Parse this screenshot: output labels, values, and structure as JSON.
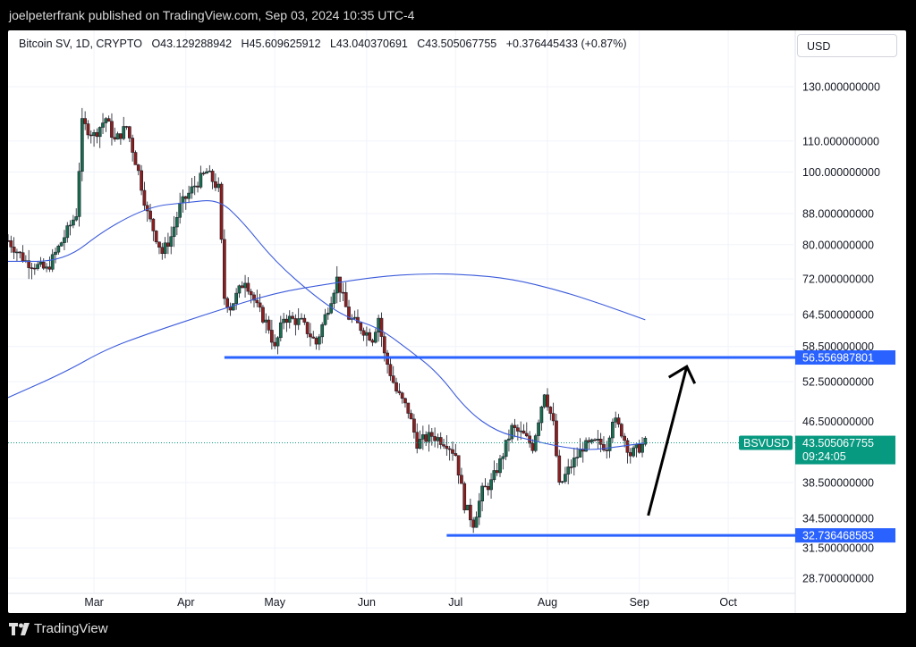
{
  "header": {
    "publisher_text": "joelpeterfrank published on TradingView.com, Sep 03, 2024 10:35 UTC-4"
  },
  "legend": {
    "symbol": "Bitcoin SV, 1D, CRYPTO",
    "open": "O43.129288942",
    "high": "H45.609625912",
    "low": "L43.040370691",
    "close": "C43.505067755",
    "change": "+0.376445433 (+0.87%)"
  },
  "currency_button": "USD",
  "footer": {
    "brand": "TradingView"
  },
  "colors": {
    "up": "#26a69a",
    "down": "#ef5350",
    "candle_body_up": "#1b6b4f",
    "candle_body_down": "#8b1f1f",
    "ma": "#3b5bdb",
    "hline": "#2962ff",
    "accent_green": "#089981"
  },
  "chart_data": {
    "type": "candlestick",
    "title": "Bitcoin SV, 1D, CRYPTO",
    "y_scale": "log",
    "ylim": [
      28,
      140
    ],
    "price_ticks": [
      "130.000000000",
      "110.000000000",
      "100.000000000",
      "88.000000000",
      "80.000000000",
      "72.000000000",
      "64.500000000",
      "58.500000000",
      "52.500000000",
      "46.500000000",
      "38.500000000",
      "34.500000000",
      "31.500000000",
      "28.700000000"
    ],
    "price_tick_values": [
      130,
      110,
      100,
      88,
      80,
      72,
      64.5,
      58.5,
      52.5,
      46.5,
      38.5,
      34.5,
      31.5,
      28.7
    ],
    "x_ticks": [
      "Mar",
      "Apr",
      "May",
      "Jun",
      "Jul",
      "Aug",
      "Sep",
      "Oct"
    ],
    "x_tick_dates": [
      "2024-03-01",
      "2024-04-01",
      "2024-05-01",
      "2024-06-01",
      "2024-07-01",
      "2024-08-01",
      "2024-09-01",
      "2024-10-01"
    ],
    "x_range": [
      "2024-02-01",
      "2024-10-23"
    ],
    "waypoints": [
      [
        "2024-02-01",
        81
      ],
      [
        "2024-02-07",
        76
      ],
      [
        "2024-02-14",
        74
      ],
      [
        "2024-02-20",
        82
      ],
      [
        "2024-02-24",
        88
      ],
      [
        "2024-02-26",
        116
      ],
      [
        "2024-03-01",
        112
      ],
      [
        "2024-03-05",
        118
      ],
      [
        "2024-03-08",
        110
      ],
      [
        "2024-03-12",
        115
      ],
      [
        "2024-03-16",
        100
      ],
      [
        "2024-03-19",
        88
      ],
      [
        "2024-03-24",
        78
      ],
      [
        "2024-03-27",
        82
      ],
      [
        "2024-03-30",
        90
      ],
      [
        "2024-04-04",
        96
      ],
      [
        "2024-04-08",
        100
      ],
      [
        "2024-04-12",
        95
      ],
      [
        "2024-04-14",
        68
      ],
      [
        "2024-04-16",
        66
      ],
      [
        "2024-04-21",
        72
      ],
      [
        "2024-04-25",
        66
      ],
      [
        "2024-04-29",
        62
      ],
      [
        "2024-05-01",
        58
      ],
      [
        "2024-05-04",
        64
      ],
      [
        "2024-05-10",
        63
      ],
      [
        "2024-05-15",
        59
      ],
      [
        "2024-05-19",
        66
      ],
      [
        "2024-05-22",
        72
      ],
      [
        "2024-05-26",
        64
      ],
      [
        "2024-05-30",
        62
      ],
      [
        "2024-06-03",
        60
      ],
      [
        "2024-06-05",
        64
      ],
      [
        "2024-06-07",
        57
      ],
      [
        "2024-06-11",
        51
      ],
      [
        "2024-06-15",
        48
      ],
      [
        "2024-06-18",
        43.5
      ],
      [
        "2024-06-23",
        44.5
      ],
      [
        "2024-06-28",
        43.5
      ],
      [
        "2024-07-01",
        42
      ],
      [
        "2024-07-04",
        36
      ],
      [
        "2024-07-07",
        34
      ],
      [
        "2024-07-10",
        37.5
      ],
      [
        "2024-07-13",
        38.5
      ],
      [
        "2024-07-16",
        41
      ],
      [
        "2024-07-20",
        45.5
      ],
      [
        "2024-07-24",
        44.5
      ],
      [
        "2024-07-27",
        43
      ],
      [
        "2024-07-31",
        51
      ],
      [
        "2024-08-03",
        46
      ],
      [
        "2024-08-05",
        38
      ],
      [
        "2024-08-08",
        40
      ],
      [
        "2024-08-13",
        43
      ],
      [
        "2024-08-18",
        43.5
      ],
      [
        "2024-08-21",
        43
      ],
      [
        "2024-08-23",
        47
      ],
      [
        "2024-08-26",
        45
      ],
      [
        "2024-08-29",
        42
      ],
      [
        "2024-09-03",
        43.5
      ]
    ],
    "ma_fast": [
      [
        "2024-02-01",
        76
      ],
      [
        "2024-02-20",
        76
      ],
      [
        "2024-03-05",
        84
      ],
      [
        "2024-03-20",
        90
      ],
      [
        "2024-04-01",
        91
      ],
      [
        "2024-04-12",
        92
      ],
      [
        "2024-04-20",
        86
      ],
      [
        "2024-05-01",
        76
      ],
      [
        "2024-05-15",
        68
      ],
      [
        "2024-05-25",
        64
      ],
      [
        "2024-06-05",
        62
      ],
      [
        "2024-06-15",
        58
      ],
      [
        "2024-06-25",
        54
      ],
      [
        "2024-07-05",
        48
      ],
      [
        "2024-07-15",
        45
      ],
      [
        "2024-07-25",
        44
      ],
      [
        "2024-08-05",
        43
      ],
      [
        "2024-08-15",
        42.5
      ],
      [
        "2024-08-25",
        43
      ],
      [
        "2024-09-03",
        43.5
      ]
    ],
    "ma_slow": [
      [
        "2024-02-01",
        50
      ],
      [
        "2024-02-20",
        54
      ],
      [
        "2024-03-05",
        58
      ],
      [
        "2024-03-20",
        61
      ],
      [
        "2024-04-10",
        65
      ],
      [
        "2024-05-01",
        69
      ],
      [
        "2024-05-20",
        71
      ],
      [
        "2024-06-05",
        72.5
      ],
      [
        "2024-06-20",
        73.2
      ],
      [
        "2024-07-05",
        73
      ],
      [
        "2024-07-20",
        72
      ],
      [
        "2024-08-05",
        69.5
      ],
      [
        "2024-08-20",
        66.5
      ],
      [
        "2024-09-03",
        63.5
      ]
    ],
    "horizontal_lines": [
      {
        "value": 56.556987801,
        "label": "56.556987801",
        "from": "2024-04-14"
      },
      {
        "value": 32.736468583,
        "label": "32.736468583",
        "from": "2024-06-28"
      }
    ],
    "current_price": {
      "symbol": "BSVUSD",
      "value": 43.505067755,
      "label": "43.505067755",
      "countdown": "09:24:05"
    },
    "annotation_arrow": {
      "from": [
        "2024-09-04",
        34.8
      ],
      "to": [
        "2024-09-17",
        55
      ]
    }
  }
}
